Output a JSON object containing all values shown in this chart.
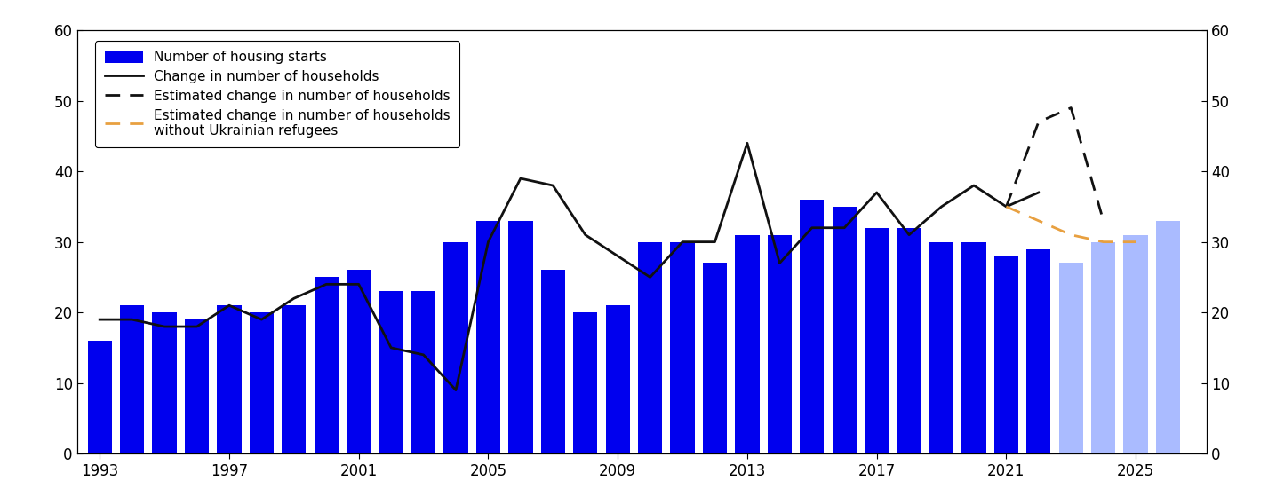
{
  "years_bars": [
    1993,
    1994,
    1995,
    1996,
    1997,
    1998,
    1999,
    2000,
    2001,
    2002,
    2003,
    2004,
    2005,
    2006,
    2007,
    2008,
    2009,
    2010,
    2011,
    2012,
    2013,
    2014,
    2015,
    2016,
    2017,
    2018,
    2019,
    2020,
    2021,
    2022
  ],
  "bar_values": [
    16,
    21,
    20,
    19,
    21,
    20,
    21,
    25,
    26,
    23,
    23,
    30,
    33,
    33,
    26,
    20,
    21,
    30,
    30,
    27,
    31,
    31,
    36,
    35,
    32,
    32,
    30,
    30,
    28,
    29
  ],
  "years_bars_forecast": [
    2023,
    2024,
    2025,
    2026
  ],
  "bar_values_forecast": [
    27,
    30,
    31,
    33
  ],
  "line_years": [
    1993,
    1994,
    1995,
    1996,
    1997,
    1998,
    1999,
    2000,
    2001,
    2002,
    2003,
    2004,
    2005,
    2006,
    2007,
    2008,
    2009,
    2010,
    2011,
    2012,
    2013,
    2014,
    2015,
    2016,
    2017,
    2018,
    2019,
    2020,
    2021,
    2022
  ],
  "line_values": [
    19,
    19,
    18,
    18,
    21,
    19,
    22,
    24,
    24,
    15,
    14,
    9,
    30,
    39,
    38,
    31,
    28,
    25,
    30,
    30,
    44,
    27,
    32,
    32,
    37,
    31,
    35,
    38,
    35,
    37
  ],
  "dashed_years": [
    2021,
    2022,
    2023,
    2024
  ],
  "dashed_values": [
    35,
    47,
    49,
    33
  ],
  "orange_dashed_years": [
    2021,
    2022,
    2023,
    2024,
    2025
  ],
  "orange_dashed_values": [
    35,
    33,
    31,
    30,
    30
  ],
  "solid_bar_color": "#0000EE",
  "forecast_bar_color": "#aabbff",
  "line_color": "#111111",
  "dashed_color": "#111111",
  "orange_dashed_color": "#E8A040",
  "ylim": [
    0,
    60
  ],
  "xlim_min": 1992.3,
  "xlim_max": 2027.2,
  "yticks": [
    0,
    10,
    20,
    30,
    40,
    50,
    60
  ],
  "xtick_labels": [
    "1993",
    "1997",
    "2001",
    "2005",
    "2009",
    "2013",
    "2017",
    "2021",
    "2025"
  ],
  "xtick_positions": [
    1993,
    1997,
    2001,
    2005,
    2009,
    2013,
    2017,
    2021,
    2025
  ],
  "legend_labels": [
    "Number of housing starts",
    "Change in number of households",
    "Estimated change in number of households",
    "Estimated change in number of households\nwithout Ukrainian refugees"
  ],
  "bar_width": 0.75,
  "figsize": [
    14.45,
    5.68
  ],
  "dpi": 100
}
